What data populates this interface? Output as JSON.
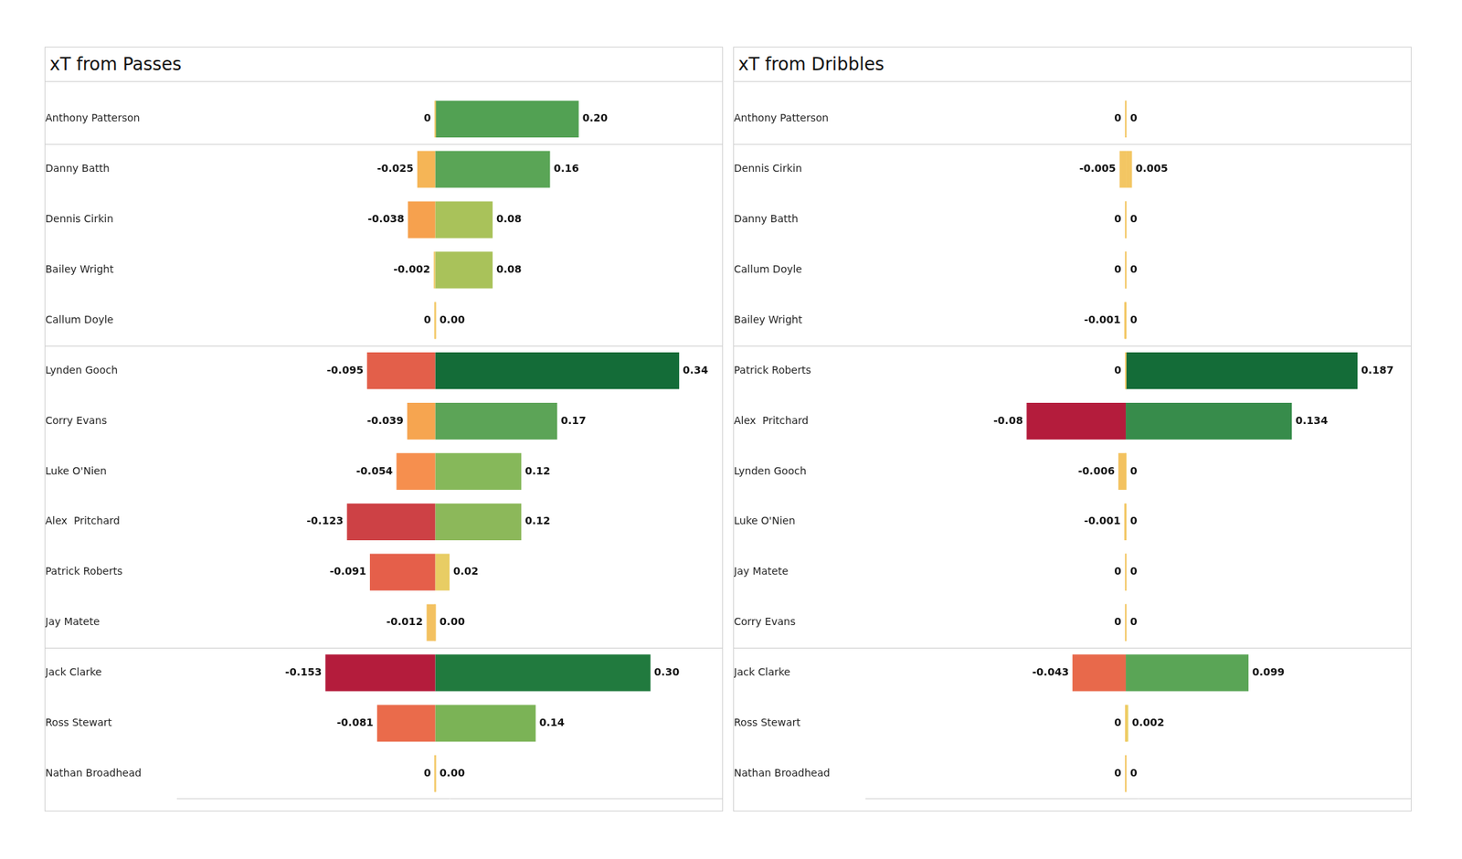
{
  "chart_data": [
    {
      "type": "bar",
      "title": "xT from Passes",
      "orientation": "horizontal",
      "categories": [
        "Anthony Patterson",
        "Danny Batth",
        "Dennis Cirkin",
        "Bailey Wright",
        "Callum Doyle",
        "Lynden Gooch",
        "Corry Evans",
        "Luke O'Nien",
        "Alex  Pritchard",
        "Patrick Roberts",
        "Jay Matete",
        "Jack Clarke",
        "Ross Stewart",
        "Nathan Broadhead"
      ],
      "series": [
        {
          "values": [
            0,
            -0.025,
            -0.038,
            -0.002,
            0,
            -0.095,
            -0.039,
            -0.054,
            -0.123,
            -0.091,
            -0.012,
            -0.153,
            -0.081,
            0
          ],
          "colors": [
            "#f3c866",
            "#f5b556",
            "#f6a14e",
            "#f2c866",
            "#f3c866",
            "#e35f4a",
            "#f6a550",
            "#f68f4e",
            "#cd4145",
            "#e55f4a",
            "#f3c160",
            "#b41c3c",
            "#ea6b4b",
            "#f3c866"
          ]
        },
        {
          "values": [
            0.2,
            0.16,
            0.08,
            0.08,
            0,
            0.34,
            0.17,
            0.12,
            0.12,
            0.02,
            0,
            0.3,
            0.14,
            0
          ],
          "value_labels": [
            "0.20",
            "0.16",
            "0.08",
            "0.08",
            "0.00",
            "0.34",
            "0.17",
            "0.12",
            "0.12",
            "0.02",
            "0.00",
            "0.30",
            "0.14",
            "0.00"
          ],
          "colors": [
            "#52a153",
            "#5aa556",
            "#a9c25a",
            "#a9c25a",
            "#f3c866",
            "#146c38",
            "#5ca457",
            "#86b85a",
            "#8cb85a",
            "#e8cd64",
            "#f3c866",
            "#217a3e",
            "#7bb356",
            "#f3c866"
          ]
        }
      ],
      "xlim": [
        -0.36,
        0.4
      ],
      "data_labels": true,
      "tick_labels": "y",
      "grid": false
    },
    {
      "type": "bar",
      "title": "xT from Dribbles",
      "orientation": "horizontal",
      "categories": [
        "Anthony Patterson",
        "Dennis Cirkin",
        "Danny Batth",
        "Callum Doyle",
        "Bailey Wright",
        "Patrick Roberts",
        "Alex  Pritchard",
        "Lynden Gooch",
        "Luke O'Nien",
        "Jay Matete",
        "Corry Evans",
        "Jack Clarke",
        "Ross Stewart",
        "Nathan Broadhead"
      ],
      "series": [
        {
          "values": [
            0,
            -0.005,
            0,
            0,
            -0.001,
            0,
            -0.08,
            -0.006,
            -0.001,
            0,
            0,
            -0.043,
            0,
            0
          ],
          "colors": [
            "#f3c866",
            "#f3c663",
            "#f3c866",
            "#f3c866",
            "#f3c866",
            "#f3c866",
            "#b41c3c",
            "#f3c260",
            "#f3c866",
            "#f3c866",
            "#f3c866",
            "#e8694b",
            "#f3c866",
            "#f3c866"
          ]
        },
        {
          "values": [
            0,
            0.005,
            0,
            0,
            0,
            0.187,
            0.134,
            0,
            0,
            0,
            0,
            0.099,
            0.002,
            0
          ],
          "colors": [
            "#f3c866",
            "#f3c663",
            "#f3c866",
            "#f3c866",
            "#f3c866",
            "#146c38",
            "#378c4b",
            "#f3c866",
            "#f3c866",
            "#f3c866",
            "#f3c866",
            "#5aa556",
            "#e8d066",
            "#f3c866"
          ]
        }
      ],
      "xlim": [
        -0.21,
        0.23
      ],
      "data_labels": true,
      "tick_labels": "y",
      "grid": false
    }
  ]
}
